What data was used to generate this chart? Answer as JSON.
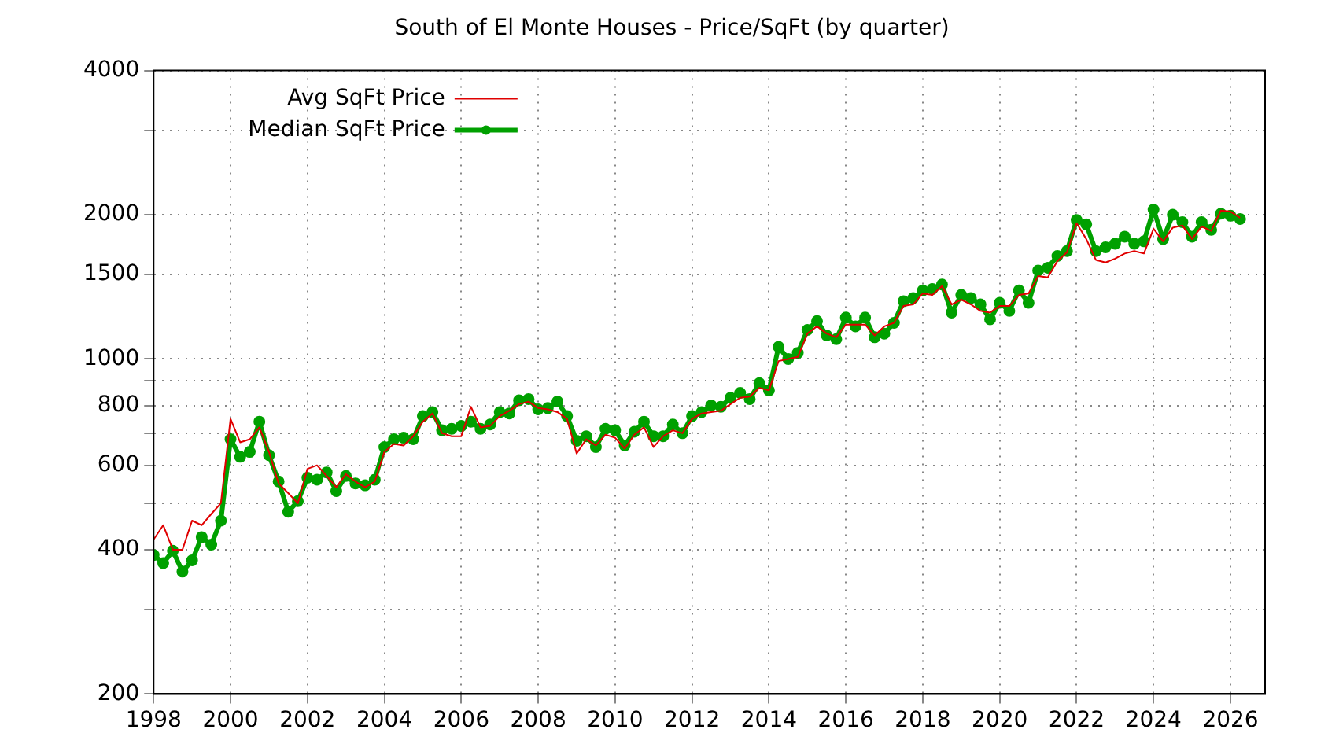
{
  "chart_data": {
    "type": "line",
    "title": "South of El Monte Houses - Price/SqFt (by quarter)",
    "x": [
      1998,
      1998.25,
      1998.5,
      1998.75,
      1999,
      1999.25,
      1999.5,
      1999.75,
      2000,
      2000.25,
      2000.5,
      2000.75,
      2001,
      2001.25,
      2001.5,
      2001.75,
      2002,
      2002.25,
      2002.5,
      2002.75,
      2003,
      2003.25,
      2003.5,
      2003.75,
      2004,
      2004.25,
      2004.5,
      2004.75,
      2005,
      2005.25,
      2005.5,
      2005.75,
      2006,
      2006.25,
      2006.5,
      2006.75,
      2007,
      2007.25,
      2007.5,
      2007.75,
      2008,
      2008.25,
      2008.5,
      2008.75,
      2009,
      2009.25,
      2009.5,
      2009.75,
      2010,
      2010.25,
      2010.5,
      2010.75,
      2011,
      2011.25,
      2011.5,
      2011.75,
      2012,
      2012.25,
      2012.5,
      2012.75,
      2013,
      2013.25,
      2013.5,
      2013.75,
      2014,
      2014.25,
      2014.5,
      2014.75,
      2015,
      2015.25,
      2015.5,
      2015.75,
      2016,
      2016.25,
      2016.5,
      2016.75,
      2017,
      2017.25,
      2017.5,
      2017.75,
      2018,
      2018.25,
      2018.5,
      2018.75,
      2019,
      2019.25,
      2019.5,
      2019.75,
      2020,
      2020.25,
      2020.5,
      2020.75,
      2021,
      2021.25,
      2021.5,
      2021.75,
      2022,
      2022.25,
      2022.5,
      2022.75,
      2023,
      2023.25,
      2023.5,
      2023.75,
      2024,
      2024.25,
      2024.5,
      2024.75,
      2025,
      2025.25,
      2025.5,
      2025.75,
      2026,
      2026.25
    ],
    "series": [
      {
        "name": "Avg SqFt Price",
        "color": "#e00000",
        "marker": "none",
        "values": [
          420,
          450,
          400,
          400,
          460,
          450,
          475,
          500,
          750,
          670,
          680,
          720,
          640,
          550,
          525,
          500,
          590,
          600,
          570,
          540,
          575,
          555,
          540,
          555,
          640,
          665,
          660,
          690,
          740,
          770,
          700,
          690,
          690,
          795,
          720,
          725,
          760,
          780,
          805,
          815,
          790,
          785,
          775,
          750,
          635,
          680,
          660,
          695,
          685,
          650,
          695,
          720,
          655,
          690,
          710,
          700,
          750,
          770,
          775,
          780,
          805,
          830,
          835,
          870,
          860,
          990,
          1000,
          1010,
          1130,
          1170,
          1130,
          1110,
          1180,
          1180,
          1180,
          1120,
          1170,
          1190,
          1290,
          1300,
          1370,
          1360,
          1420,
          1300,
          1330,
          1300,
          1260,
          1250,
          1290,
          1290,
          1360,
          1370,
          1490,
          1480,
          1600,
          1670,
          1920,
          1780,
          1610,
          1590,
          1620,
          1660,
          1680,
          1660,
          1870,
          1760,
          1880,
          1900,
          1780,
          1890,
          1850,
          2040,
          2030,
          1970
        ]
      },
      {
        "name": "Median SqFt Price",
        "color": "#00a000",
        "marker": "circle",
        "values": [
          390,
          375,
          398,
          360,
          380,
          425,
          410,
          460,
          680,
          625,
          640,
          740,
          630,
          555,
          480,
          505,
          565,
          560,
          580,
          530,
          570,
          550,
          545,
          560,
          655,
          680,
          685,
          680,
          760,
          775,
          710,
          715,
          725,
          740,
          715,
          730,
          775,
          770,
          820,
          825,
          785,
          790,
          815,
          760,
          675,
          690,
          655,
          715,
          710,
          660,
          705,
          740,
          690,
          690,
          730,
          700,
          760,
          775,
          800,
          795,
          830,
          850,
          825,
          890,
          860,
          1060,
          1000,
          1030,
          1150,
          1200,
          1120,
          1100,
          1220,
          1170,
          1220,
          1110,
          1130,
          1190,
          1320,
          1340,
          1390,
          1400,
          1430,
          1250,
          1360,
          1340,
          1300,
          1210,
          1310,
          1260,
          1390,
          1310,
          1530,
          1550,
          1640,
          1680,
          1950,
          1910,
          1680,
          1710,
          1740,
          1800,
          1740,
          1760,
          2050,
          1780,
          2000,
          1930,
          1800,
          1930,
          1860,
          2010,
          1990,
          1960
        ]
      }
    ],
    "xlim": [
      1998,
      2026.9
    ],
    "xticks": [
      1998,
      2000,
      2002,
      2004,
      2006,
      2008,
      2010,
      2012,
      2014,
      2016,
      2018,
      2020,
      2022,
      2024,
      2026
    ],
    "ylim": [
      200,
      4000
    ],
    "yticks": [
      200,
      {
        "value": 300,
        "label": null
      },
      400,
      {
        "value": 500,
        "label": null
      },
      600,
      {
        "value": 700,
        "label": null
      },
      800,
      {
        "value": 900,
        "label": null
      },
      1000,
      1500,
      2000,
      {
        "value": 3000,
        "label": null
      },
      4000
    ],
    "log": "y",
    "grid": true,
    "legend": "top left"
  }
}
